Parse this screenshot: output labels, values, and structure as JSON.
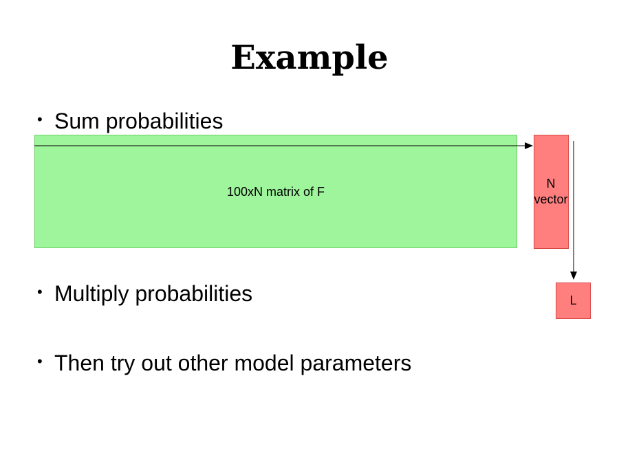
{
  "title": "Example",
  "bullets": [
    "Sum probabilities",
    "Multiply probabilities",
    "Then try out other model parameters"
  ],
  "bullet_glyph": "•",
  "diagram": {
    "matrix_label": "100xN matrix of F",
    "vector_label_line1": "N",
    "vector_label_line2": "vector",
    "result_label": "L",
    "colors": {
      "matrix_fill": "#9ff59c",
      "vector_fill": "#ff7f7f",
      "arrow": "#000000"
    }
  }
}
